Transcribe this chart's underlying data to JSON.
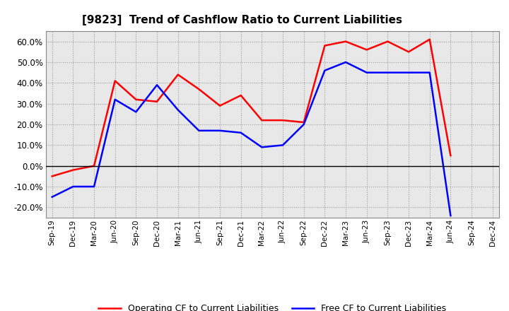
{
  "title": "[9823]  Trend of Cashflow Ratio to Current Liabilities",
  "x_labels": [
    "Sep-19",
    "Dec-19",
    "Mar-20",
    "Jun-20",
    "Sep-20",
    "Dec-20",
    "Mar-21",
    "Jun-21",
    "Sep-21",
    "Dec-21",
    "Mar-22",
    "Jun-22",
    "Sep-22",
    "Dec-22",
    "Mar-23",
    "Jun-23",
    "Sep-23",
    "Dec-23",
    "Mar-24",
    "Jun-24",
    "Sep-24",
    "Dec-24"
  ],
  "operating_cf": [
    -0.05,
    -0.02,
    0.0,
    0.41,
    0.32,
    0.31,
    0.44,
    0.37,
    0.29,
    0.34,
    0.22,
    0.22,
    0.21,
    0.58,
    0.6,
    0.56,
    0.6,
    0.55,
    0.61,
    0.05,
    null,
    null
  ],
  "free_cf": [
    -0.15,
    -0.1,
    -0.1,
    0.32,
    0.26,
    0.39,
    0.27,
    0.17,
    0.17,
    0.16,
    0.09,
    0.1,
    0.2,
    0.46,
    0.5,
    0.45,
    0.45,
    0.45,
    0.45,
    -0.24,
    null,
    null
  ],
  "ylim": [
    -0.25,
    0.65
  ],
  "yticks": [
    -0.2,
    -0.1,
    0.0,
    0.1,
    0.2,
    0.3,
    0.4,
    0.5,
    0.6
  ],
  "operating_color": "#FF0000",
  "free_color": "#0000FF",
  "background_color": "#FFFFFF",
  "plot_bg_color": "#E8E8E8",
  "grid_color": "#AAAAAA",
  "legend_op": "Operating CF to Current Liabilities",
  "legend_free": "Free CF to Current Liabilities"
}
